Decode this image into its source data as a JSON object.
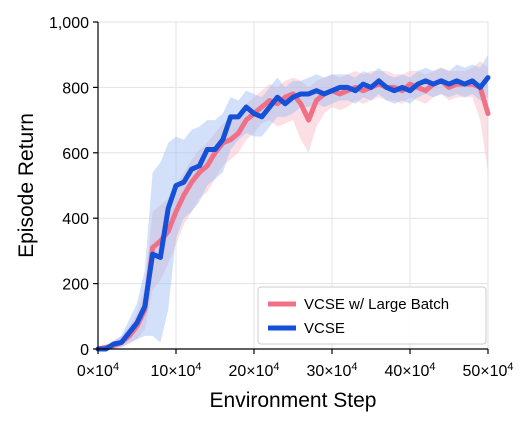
{
  "chart_data": {
    "type": "line",
    "title": "",
    "xlabel": "Environment Step",
    "ylabel": "Episode Return",
    "xlim": [
      0,
      500000
    ],
    "ylim": [
      0,
      1000
    ],
    "x_ticks": [
      {
        "value": 0,
        "mantissa": "0",
        "base": "×10",
        "exp": "4"
      },
      {
        "value": 100000,
        "mantissa": "10",
        "base": "×10",
        "exp": "4"
      },
      {
        "value": 200000,
        "mantissa": "20",
        "base": "×10",
        "exp": "4"
      },
      {
        "value": 300000,
        "mantissa": "30",
        "base": "×10",
        "exp": "4"
      },
      {
        "value": 400000,
        "mantissa": "40",
        "base": "×10",
        "exp": "4"
      },
      {
        "value": 500000,
        "mantissa": "50",
        "base": "×10",
        "exp": "4"
      }
    ],
    "y_ticks": [
      {
        "value": 0,
        "label": "0"
      },
      {
        "value": 200,
        "label": "200"
      },
      {
        "value": 400,
        "label": "400"
      },
      {
        "value": 600,
        "label": "600"
      },
      {
        "value": 800,
        "label": "800"
      },
      {
        "value": 1000,
        "label": "1,000"
      }
    ],
    "grid": true,
    "legend": "bottom-right",
    "series": [
      {
        "name": "VCSE w/ Large Batch",
        "color": "#f07088",
        "band_color": "#f9b8c6",
        "x": [
          0,
          10000,
          20000,
          30000,
          40000,
          50000,
          60000,
          70000,
          80000,
          90000,
          100000,
          110000,
          120000,
          130000,
          140000,
          150000,
          160000,
          170000,
          180000,
          190000,
          200000,
          210000,
          220000,
          230000,
          240000,
          250000,
          260000,
          270000,
          280000,
          290000,
          300000,
          310000,
          320000,
          330000,
          340000,
          350000,
          360000,
          370000,
          380000,
          390000,
          400000,
          410000,
          420000,
          430000,
          440000,
          450000,
          460000,
          470000,
          480000,
          490000,
          500000
        ],
        "y": [
          0,
          5,
          10,
          20,
          40,
          70,
          120,
          310,
          330,
          360,
          420,
          470,
          510,
          540,
          560,
          600,
          630,
          640,
          660,
          700,
          720,
          740,
          760,
          750,
          770,
          780,
          750,
          700,
          760,
          780,
          790,
          780,
          790,
          800,
          790,
          800,
          810,
          800,
          800,
          790,
          810,
          800,
          790,
          810,
          820,
          800,
          810,
          810,
          810,
          800,
          720
        ],
        "lower": [
          0,
          0,
          0,
          5,
          15,
          30,
          60,
          180,
          210,
          260,
          320,
          380,
          420,
          460,
          480,
          520,
          560,
          580,
          600,
          640,
          660,
          690,
          700,
          680,
          690,
          700,
          640,
          600,
          680,
          720,
          740,
          730,
          740,
          760,
          750,
          760,
          770,
          760,
          760,
          750,
          770,
          760,
          750,
          770,
          780,
          760,
          770,
          770,
          770,
          700,
          540
        ],
        "upper": [
          0,
          10,
          25,
          40,
          70,
          110,
          190,
          420,
          440,
          460,
          500,
          540,
          580,
          610,
          630,
          660,
          690,
          700,
          720,
          750,
          770,
          790,
          810,
          800,
          820,
          830,
          820,
          800,
          820,
          830,
          840,
          830,
          840,
          850,
          840,
          850,
          850,
          850,
          840,
          840,
          850,
          850,
          840,
          850,
          860,
          850,
          850,
          850,
          860,
          880,
          860
        ]
      },
      {
        "name": "VCSE",
        "color": "#1550d8",
        "band_color": "#9cbcf2",
        "x": [
          0,
          10000,
          20000,
          30000,
          40000,
          50000,
          60000,
          70000,
          80000,
          90000,
          100000,
          110000,
          120000,
          130000,
          140000,
          150000,
          160000,
          170000,
          180000,
          190000,
          200000,
          210000,
          220000,
          230000,
          240000,
          250000,
          260000,
          270000,
          280000,
          290000,
          300000,
          310000,
          320000,
          330000,
          340000,
          350000,
          360000,
          370000,
          380000,
          390000,
          400000,
          410000,
          420000,
          430000,
          440000,
          450000,
          460000,
          470000,
          480000,
          490000,
          500000
        ],
        "y": [
          0,
          0,
          15,
          20,
          50,
          80,
          130,
          290,
          280,
          430,
          500,
          510,
          550,
          560,
          610,
          610,
          640,
          710,
          710,
          740,
          720,
          710,
          740,
          770,
          750,
          770,
          780,
          780,
          790,
          780,
          790,
          800,
          800,
          790,
          810,
          800,
          820,
          800,
          790,
          800,
          790,
          810,
          820,
          810,
          820,
          810,
          820,
          810,
          820,
          800,
          830
        ],
        "lower": [
          0,
          0,
          5,
          5,
          20,
          30,
          40,
          40,
          20,
          120,
          340,
          400,
          420,
          450,
          500,
          520,
          540,
          610,
          640,
          660,
          650,
          650,
          680,
          710,
          710,
          720,
          740,
          740,
          750,
          740,
          750,
          760,
          760,
          750,
          770,
          760,
          780,
          760,
          750,
          760,
          750,
          770,
          780,
          770,
          780,
          770,
          780,
          770,
          780,
          760,
          770
        ],
        "upper": [
          0,
          10,
          25,
          40,
          90,
          140,
          240,
          540,
          570,
          630,
          650,
          640,
          670,
          680,
          700,
          700,
          720,
          770,
          760,
          790,
          780,
          770,
          800,
          830,
          800,
          820,
          820,
          830,
          840,
          830,
          840,
          840,
          840,
          830,
          850,
          840,
          860,
          840,
          830,
          840,
          830,
          850,
          860,
          850,
          860,
          850,
          870,
          860,
          870,
          860,
          900
        ]
      }
    ]
  }
}
